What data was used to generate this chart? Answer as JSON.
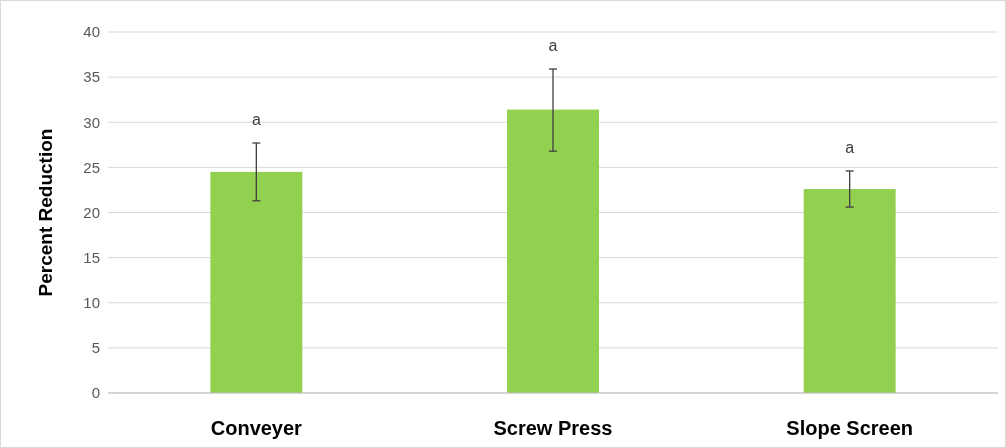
{
  "chart_data": {
    "type": "bar",
    "ylabel": "Percent Reduction",
    "categories": [
      "Conveyer",
      "Screw Press",
      "Slope Screen"
    ],
    "values": [
      24.5,
      31.4,
      22.6
    ],
    "color": "#92d050",
    "errors": [
      [
        21.3,
        27.7
      ],
      [
        26.8,
        35.9
      ],
      [
        20.6,
        24.6
      ]
    ],
    "ylim": [
      0,
      40
    ],
    "yticks": [
      0,
      5,
      10,
      15,
      20,
      25,
      30,
      35,
      40
    ],
    "grid": "y",
    "annotations": [
      "a",
      "a",
      "a"
    ]
  }
}
